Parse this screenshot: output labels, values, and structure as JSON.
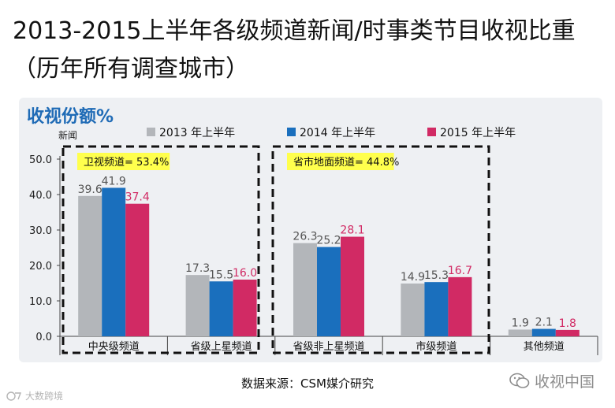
{
  "page": {
    "title_line1": "2013-2015上半年各级频道新闻/时事类节目收视比重",
    "title_line2": "（历年所有调查城市）",
    "panel_title": "收视份额%",
    "source": "数据来源：CSM媒介研究",
    "watermark_right": "收视中国",
    "watermark_left": "大数跨境"
  },
  "colors": {
    "s2013": "#b3b6ba",
    "s2014": "#1a6fbd",
    "s2015": "#d12a64",
    "highlight": "#ffff4d",
    "panel_title": "#1f6bb6"
  },
  "chart_data": {
    "type": "bar",
    "ylabel": "新闻",
    "ylim": [
      0,
      50
    ],
    "yticks": [
      "0.0",
      "10.0",
      "20.0",
      "30.0",
      "40.0",
      "50.0"
    ],
    "categories": [
      "中央级频道",
      "省级上星频道",
      "省级非上星频道",
      "市级频道",
      "其他频道"
    ],
    "series": [
      {
        "name": "2013 年上半年",
        "values": [
          39.6,
          17.3,
          26.3,
          14.9,
          1.9
        ]
      },
      {
        "name": "2014 年上半年",
        "values": [
          41.9,
          15.5,
          25.2,
          15.3,
          2.1
        ]
      },
      {
        "name": "2015 年上半年",
        "values": [
          37.4,
          16.0,
          28.1,
          16.7,
          1.8
        ]
      }
    ],
    "value_labels": [
      [
        "39.6",
        "17.3",
        "26.3",
        "14.9",
        "1.9"
      ],
      [
        "41.9",
        "15.5",
        "25.2",
        "15.3",
        "2.1"
      ],
      [
        "37.4",
        "16.0",
        "28.1",
        "16.7",
        "1.8"
      ]
    ],
    "annotations": [
      {
        "text": "卫视频道= 53.4%",
        "groups": [
          0,
          1
        ]
      },
      {
        "text": "省市地面频道= 44.8%",
        "groups": [
          2,
          3
        ]
      }
    ],
    "legend_position": "top"
  }
}
